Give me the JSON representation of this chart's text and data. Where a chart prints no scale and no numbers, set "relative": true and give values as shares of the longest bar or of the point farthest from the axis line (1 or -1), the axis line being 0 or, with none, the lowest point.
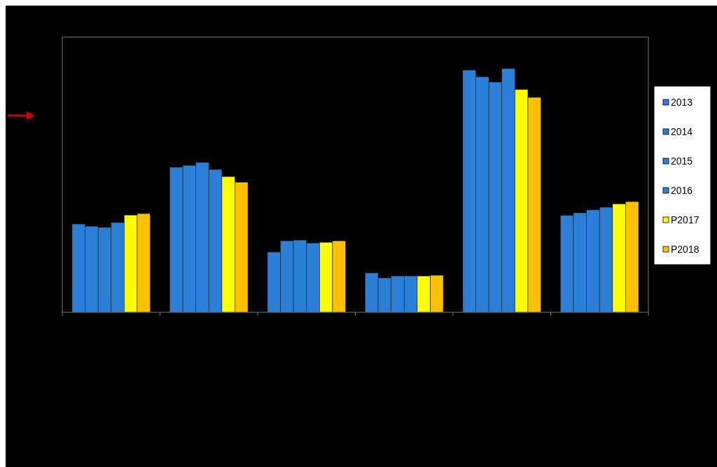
{
  "chart_data": {
    "type": "bar",
    "relative": true,
    "categories": [
      null,
      null,
      null,
      null,
      null,
      null
    ],
    "legend": "right",
    "series": [
      {
        "name": "2013",
        "color": "#2b7fd6",
        "values": [
          0.362,
          0.595,
          0.247,
          0.161,
          0.994,
          0.397
        ]
      },
      {
        "name": "2014",
        "color": "#2b7fd6",
        "values": [
          0.353,
          0.603,
          0.293,
          0.141,
          0.966,
          0.408
        ]
      },
      {
        "name": "2015",
        "color": "#2b7fd6",
        "values": [
          0.348,
          0.615,
          0.296,
          0.149,
          0.945,
          0.42
        ]
      },
      {
        "name": "2016",
        "color": "#2b7fd6",
        "values": [
          0.368,
          0.586,
          0.284,
          0.149,
          1,
          0.431
        ]
      },
      {
        "name": "P2017",
        "color": "#ffff00",
        "values": [
          0.399,
          0.557,
          0.287,
          0.149,
          0.914,
          0.445
        ]
      },
      {
        "name": "P2018",
        "color": "#ffc000",
        "values": [
          0.405,
          0.534,
          0.293,
          0.152,
          0.882,
          0.454
        ]
      }
    ]
  }
}
